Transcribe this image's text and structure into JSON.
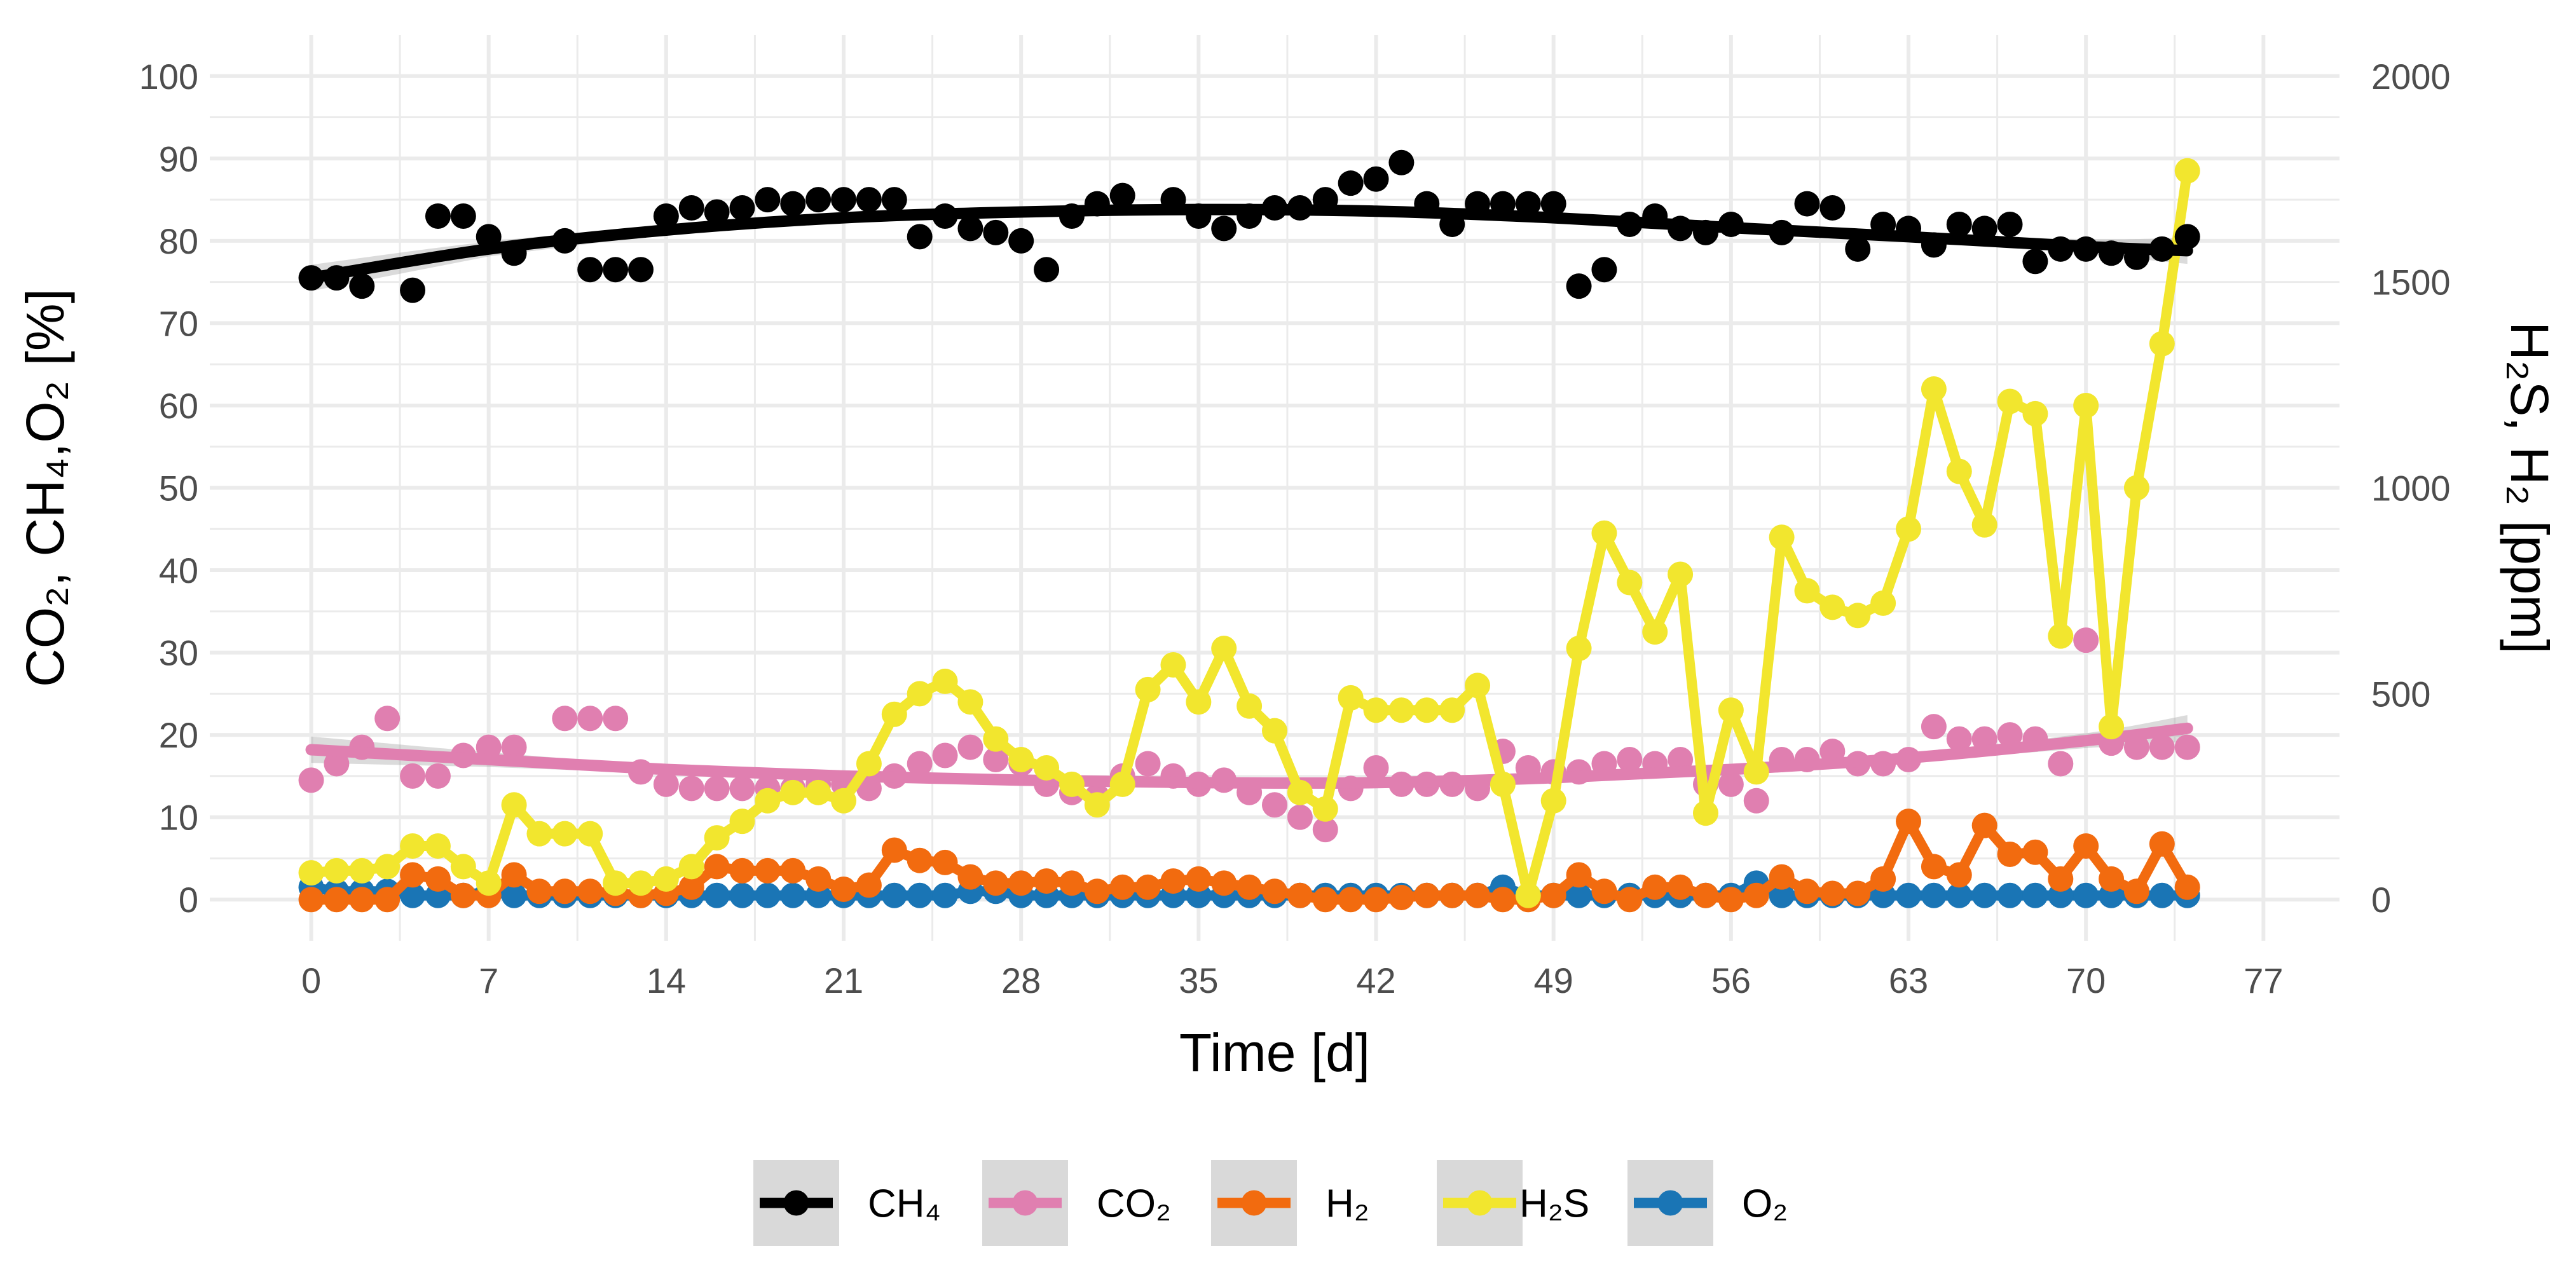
{
  "chart_data": {
    "type": "line",
    "xlabel": "Time [d]",
    "ylabel_left": "CO₂, CH₄,O₂ [%]",
    "ylabel_right": "H₂S, H₂ [ppm]",
    "xlim": [
      -4,
      80
    ],
    "ylim_left": [
      -5,
      105
    ],
    "ylim_right": [
      -100,
      2100
    ],
    "x_ticks": [
      0,
      7,
      14,
      21,
      28,
      35,
      42,
      49,
      56,
      63,
      70,
      77
    ],
    "y_ticks_left": [
      0,
      10,
      20,
      30,
      40,
      50,
      60,
      70,
      80,
      90,
      100
    ],
    "y_ticks_right": [
      0,
      500,
      1000,
      1500,
      2000
    ],
    "grid": true,
    "legend_position": "bottom",
    "legend": [
      "CH₄",
      "CO₂",
      "H₂",
      "H₂S",
      "O₂"
    ],
    "colors": {
      "CH4": "#000000",
      "CO2": "#e07fb0",
      "H2": "#f26b0f",
      "H2S": "#f2e62e",
      "O2": "#1a75b5",
      "grid": "#ebebeb",
      "legend_key_bg": "#d9d9d9"
    },
    "series": [
      {
        "name": "CH4",
        "axis": "left",
        "style": "points+smooth",
        "x": [
          0,
          1,
          2,
          4,
          5,
          6,
          7,
          8,
          10,
          11,
          12,
          13,
          14,
          15,
          16,
          17,
          18,
          19,
          20,
          21,
          22,
          23,
          24,
          25,
          26,
          27,
          28,
          29,
          30,
          31,
          32,
          34,
          35,
          36,
          37,
          38,
          39,
          40,
          41,
          42,
          43,
          44,
          45,
          46,
          47,
          48,
          49,
          50,
          51,
          52,
          53,
          54,
          55,
          56,
          58,
          59,
          60,
          61,
          62,
          63,
          64,
          65,
          66,
          67,
          68,
          69,
          70,
          71,
          72,
          73,
          74
        ],
        "values": [
          75.5,
          75.5,
          74.5,
          74,
          83,
          83,
          80.5,
          78.5,
          80,
          76.5,
          76.5,
          76.5,
          83,
          84,
          83.5,
          84,
          85,
          84.5,
          85,
          85,
          85,
          85,
          80.5,
          83,
          81.5,
          81,
          80,
          76.5,
          83,
          84.5,
          85.5,
          85,
          83,
          81.5,
          83,
          84,
          84,
          85,
          87,
          87.5,
          89.5,
          84.5,
          82,
          84.5,
          84.5,
          84.5,
          84.5,
          74.5,
          76.5,
          82,
          83,
          81.5,
          81,
          82,
          81,
          84.5,
          84,
          79,
          82,
          81.5,
          79.5,
          82,
          81.5,
          82,
          77.5,
          79,
          79,
          78.5,
          78,
          79,
          80.5
        ],
        "smooth_x": [
          0,
          7,
          14,
          21,
          28,
          35,
          42,
          49,
          56,
          63,
          70,
          74
        ],
        "smooth_values": [
          75.5,
          79,
          81.3,
          82.8,
          83.5,
          83.8,
          83.6,
          82.8,
          81.6,
          80.5,
          79.3,
          78.8
        ]
      },
      {
        "name": "CO2",
        "axis": "left",
        "style": "points+smooth",
        "x": [
          0,
          1,
          2,
          3,
          4,
          5,
          6,
          7,
          8,
          10,
          11,
          12,
          13,
          14,
          15,
          16,
          17,
          18,
          19,
          20,
          21,
          22,
          23,
          24,
          25,
          26,
          27,
          28,
          29,
          30,
          31,
          32,
          33,
          34,
          35,
          36,
          37,
          38,
          39,
          40,
          41,
          42,
          43,
          44,
          45,
          46,
          47,
          48,
          49,
          50,
          51,
          52,
          53,
          54,
          55,
          56,
          57,
          58,
          59,
          60,
          61,
          62,
          63,
          64,
          65,
          66,
          67,
          68,
          69,
          70,
          71,
          72,
          73,
          74
        ],
        "values": [
          14.5,
          16.5,
          18.5,
          22,
          15,
          15,
          17.5,
          18.5,
          18.5,
          22,
          22,
          22,
          15.5,
          14,
          13.5,
          13.5,
          13.5,
          13.5,
          13.5,
          14,
          14,
          13.5,
          15,
          16.5,
          17.5,
          18.5,
          17,
          16.5,
          14,
          13,
          12.5,
          15,
          16.5,
          15,
          14,
          14.5,
          13,
          11.5,
          10,
          8.5,
          13.5,
          16,
          14,
          14,
          14,
          13.5,
          18,
          16,
          15.5,
          15.5,
          16.5,
          17,
          16.5,
          17,
          14,
          14,
          12,
          17,
          17,
          18,
          16.5,
          16.5,
          17,
          21,
          19.5,
          19.5,
          20,
          19.5,
          16.5,
          31.5,
          19,
          18.5,
          18.5,
          18.5
        ],
        "smooth_x": [
          0,
          7,
          14,
          21,
          28,
          35,
          42,
          49,
          56,
          63,
          70,
          74
        ],
        "smooth_values": [
          18.2,
          17,
          15.8,
          15,
          14.5,
          14.2,
          14.2,
          14.8,
          15.8,
          17.2,
          19.3,
          20.8
        ]
      },
      {
        "name": "H2",
        "axis": "right",
        "style": "points+line",
        "x": [
          0,
          1,
          2,
          3,
          4,
          5,
          6,
          7,
          8,
          9,
          10,
          11,
          12,
          13,
          14,
          15,
          16,
          17,
          18,
          19,
          20,
          21,
          22,
          23,
          24,
          25,
          26,
          27,
          28,
          29,
          30,
          31,
          32,
          33,
          34,
          35,
          36,
          37,
          38,
          39,
          40,
          41,
          42,
          43,
          44,
          45,
          46,
          47,
          48,
          49,
          50,
          51,
          52,
          53,
          54,
          55,
          56,
          57,
          58,
          59,
          60,
          61,
          62,
          63,
          64,
          65,
          66,
          67,
          68,
          69,
          70,
          71,
          72,
          73,
          74
        ],
        "values": [
          0,
          0,
          0,
          0,
          60,
          50,
          10,
          10,
          60,
          20,
          20,
          20,
          15,
          10,
          15,
          30,
          80,
          70,
          70,
          70,
          50,
          25,
          35,
          120,
          95,
          90,
          55,
          40,
          40,
          45,
          40,
          20,
          30,
          30,
          45,
          50,
          40,
          30,
          20,
          10,
          0,
          0,
          0,
          5,
          10,
          10,
          10,
          0,
          0,
          10,
          60,
          20,
          0,
          30,
          30,
          10,
          0,
          10,
          55,
          20,
          15,
          15,
          50,
          190,
          80,
          60,
          180,
          110,
          115,
          50,
          130,
          50,
          20,
          135,
          30
        ]
      },
      {
        "name": "H2S",
        "axis": "right",
        "style": "points+line",
        "x": [
          0,
          1,
          2,
          3,
          4,
          5,
          6,
          7,
          8,
          9,
          10,
          11,
          12,
          13,
          14,
          15,
          16,
          17,
          18,
          19,
          20,
          21,
          22,
          23,
          24,
          25,
          26,
          27,
          28,
          29,
          30,
          31,
          32,
          33,
          34,
          35,
          36,
          37,
          38,
          39,
          40,
          41,
          42,
          43,
          44,
          45,
          46,
          47,
          48,
          49,
          50,
          51,
          52,
          53,
          54,
          55,
          56,
          57,
          58,
          59,
          60,
          61,
          62,
          63,
          64,
          65,
          66,
          67,
          68,
          69,
          70,
          71,
          72,
          73,
          74
        ],
        "values": [
          65,
          70,
          70,
          80,
          130,
          130,
          80,
          40,
          230,
          160,
          160,
          160,
          40,
          40,
          50,
          80,
          150,
          190,
          240,
          260,
          260,
          240,
          330,
          450,
          500,
          530,
          480,
          390,
          340,
          320,
          280,
          230,
          280,
          510,
          570,
          480,
          610,
          470,
          410,
          260,
          220,
          490,
          460,
          460,
          460,
          460,
          520,
          280,
          10,
          240,
          610,
          890,
          770,
          650,
          790,
          210,
          460,
          310,
          880,
          750,
          710,
          690,
          720,
          900,
          1240,
          1040,
          910,
          1210,
          1180,
          640,
          1200,
          420,
          1000,
          1350,
          1770
        ]
      },
      {
        "name": "O2",
        "axis": "left",
        "style": "points+line",
        "x": [
          0,
          1,
          2,
          3,
          4,
          5,
          6,
          7,
          8,
          9,
          10,
          11,
          12,
          13,
          14,
          15,
          16,
          17,
          18,
          19,
          20,
          21,
          22,
          23,
          24,
          25,
          26,
          27,
          28,
          29,
          30,
          31,
          32,
          33,
          34,
          35,
          36,
          37,
          38,
          39,
          40,
          41,
          42,
          43,
          44,
          45,
          46,
          47,
          48,
          49,
          50,
          51,
          52,
          53,
          54,
          55,
          56,
          57,
          58,
          59,
          60,
          61,
          62,
          63,
          64,
          65,
          66,
          67,
          68,
          69,
          70,
          71,
          72,
          73,
          74
        ],
        "values": [
          1.5,
          1,
          1,
          1,
          0.5,
          0.5,
          0.5,
          1,
          0.5,
          0.5,
          0.5,
          0.5,
          0.5,
          0.5,
          0.5,
          0.5,
          0.5,
          0.5,
          0.5,
          0.5,
          0.5,
          0.5,
          0.5,
          0.5,
          0.5,
          0.5,
          1,
          1,
          0.5,
          0.5,
          0.5,
          0.5,
          0.5,
          0.5,
          0.5,
          0.5,
          0.5,
          0.5,
          0.5,
          0.5,
          0.5,
          0.5,
          0.5,
          0.5,
          0.5,
          0.5,
          0.5,
          1.5,
          0.5,
          0.5,
          0.5,
          0.5,
          0.5,
          0.5,
          0.5,
          0.5,
          0.5,
          2,
          0.5,
          0.5,
          0.5,
          0.5,
          0.5,
          0.5,
          0.5,
          0.5,
          0.5,
          0.5,
          0.5,
          0.5,
          0.5,
          0.5,
          0.5,
          0.5,
          0.5
        ]
      }
    ]
  }
}
